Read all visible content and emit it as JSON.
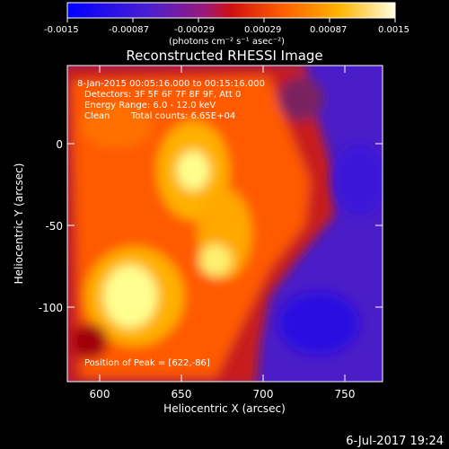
{
  "chart_data": {
    "type": "heatmap",
    "title": "Reconstructed RHESSI Image",
    "xlabel": "Heliocentric X (arcsec)",
    "ylabel": "Heliocentric Y (arcsec)",
    "xlim": [
      580,
      773
    ],
    "ylim": [
      -145,
      38
    ],
    "x_ticks": [
      600,
      650,
      700,
      750
    ],
    "y_ticks": [
      0,
      -50,
      -100
    ],
    "grid": false,
    "colorbar": {
      "position": "top",
      "range": [
        -0.0015,
        0.0015
      ],
      "ticks": [
        "-0.0015",
        "-0.00087",
        "-0.00029",
        "0.00029",
        "0.00087",
        "0.0015"
      ],
      "unit_label": "(photons cm⁻² s⁻¹ asec⁻²)"
    },
    "annotations": {
      "time_range": "8-Jan-2015 00:05:16.000 to 00:15:16.000",
      "detectors": "Detectors: 3F 5F 6F 7F 8F 9F, Att 0",
      "energy": "Energy Range: 6.0 - 12.0 keV",
      "method": "Clean",
      "total_counts": "Total counts: 6.65E+04",
      "peak": "Position of Peak = [622,-86]"
    },
    "peak_position": [
      622,
      -86
    ],
    "date_stamp": "6-Jul-2017 19:24"
  }
}
